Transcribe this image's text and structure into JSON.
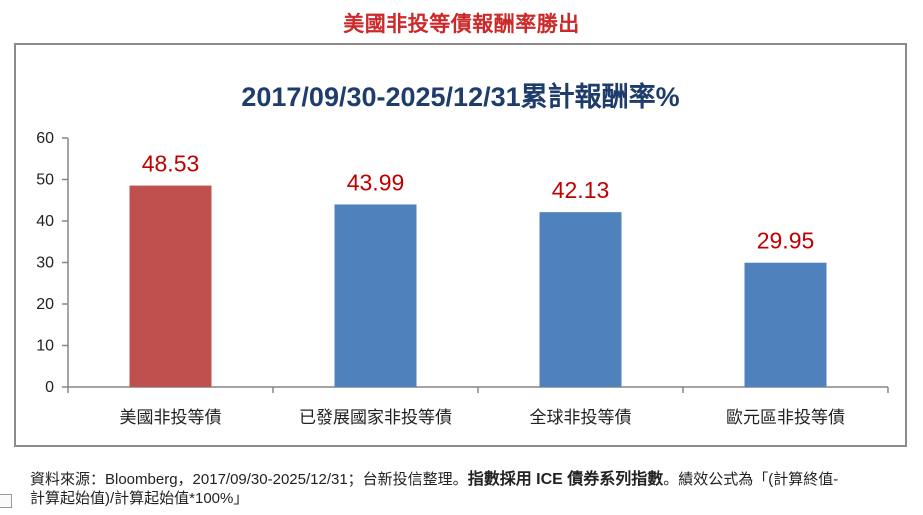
{
  "page": {
    "top_title": "美國非投等債報酬率勝出",
    "footnote_normal": "資料來源：Bloomberg，2017/09/30-2025/12/31；台新投信整理。",
    "footnote_bold": "指數採用 ICE 債券系列指數",
    "footnote_tail": "。績效公式為「(計算終值-計算起始值)/計算起始值*100%」"
  },
  "colors": {
    "highlight": "#c0504d",
    "bar": "#4f81bd",
    "data_label": "#c00000"
  },
  "chart_data": {
    "type": "bar",
    "title": "2017/09/30-2025/12/31累計報酬率%",
    "categories": [
      "美國非投等債",
      "已發展國家非投等債",
      "全球非投等債",
      "歐元區非投等債"
    ],
    "values": [
      48.53,
      43.99,
      42.13,
      29.95
    ],
    "data_labels": [
      "48.53",
      "43.99",
      "42.13",
      "29.95"
    ],
    "highlight_index": 0,
    "ylim": [
      0,
      60
    ],
    "yticks": [
      "0",
      "10",
      "20",
      "30",
      "40",
      "50",
      "60"
    ],
    "xlabel": "",
    "ylabel": "",
    "grid": false,
    "legend": "none"
  }
}
